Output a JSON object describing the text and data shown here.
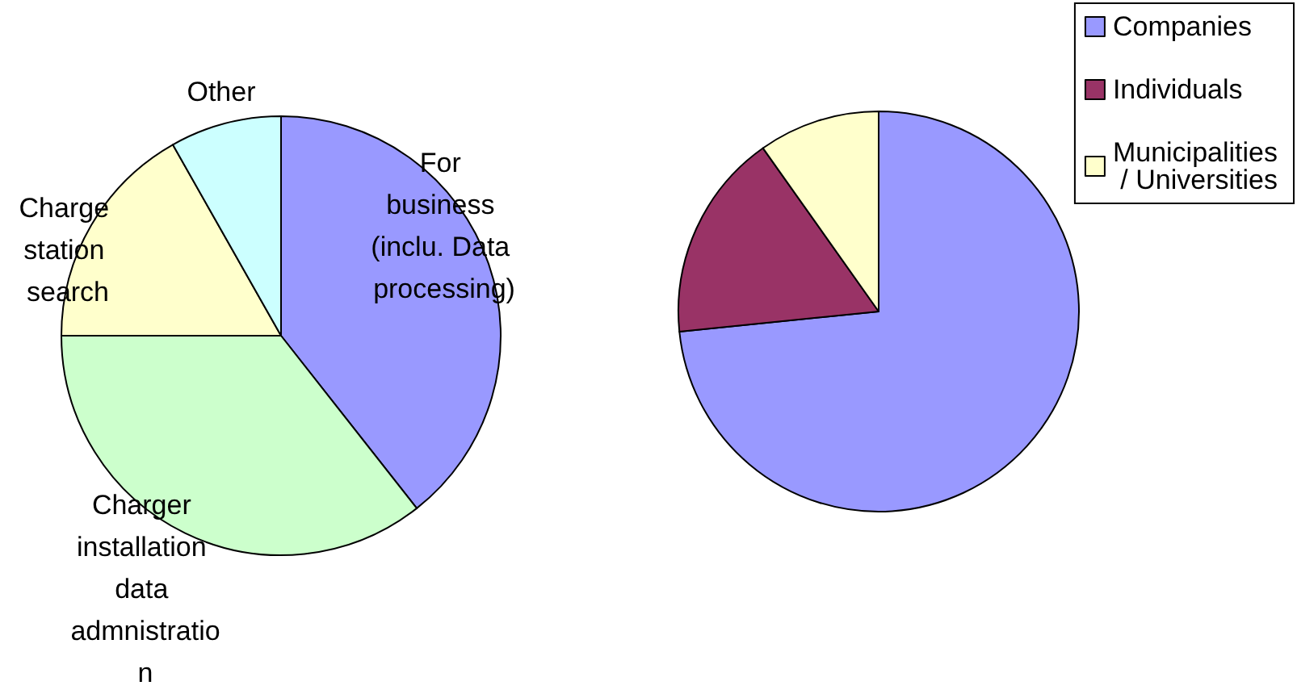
{
  "chart_data": [
    {
      "type": "pie",
      "categories": [
        "For business (inclu. Data processing)",
        "Charger installation data admnistration",
        "Charge station search",
        "Other"
      ],
      "values": [
        39.4,
        35.6,
        16.8,
        8.2
      ],
      "colors": [
        "#9999ff",
        "#ccffcc",
        "#ffffcc",
        "#ccffff"
      ]
    },
    {
      "type": "pie",
      "categories": [
        "Companies",
        "Individuals",
        "Municipalities / Universities"
      ],
      "values": [
        73.4,
        16.8,
        9.8
      ],
      "colors": [
        "#9999ff",
        "#993366",
        "#ffffcc"
      ],
      "legend": "top right"
    }
  ]
}
